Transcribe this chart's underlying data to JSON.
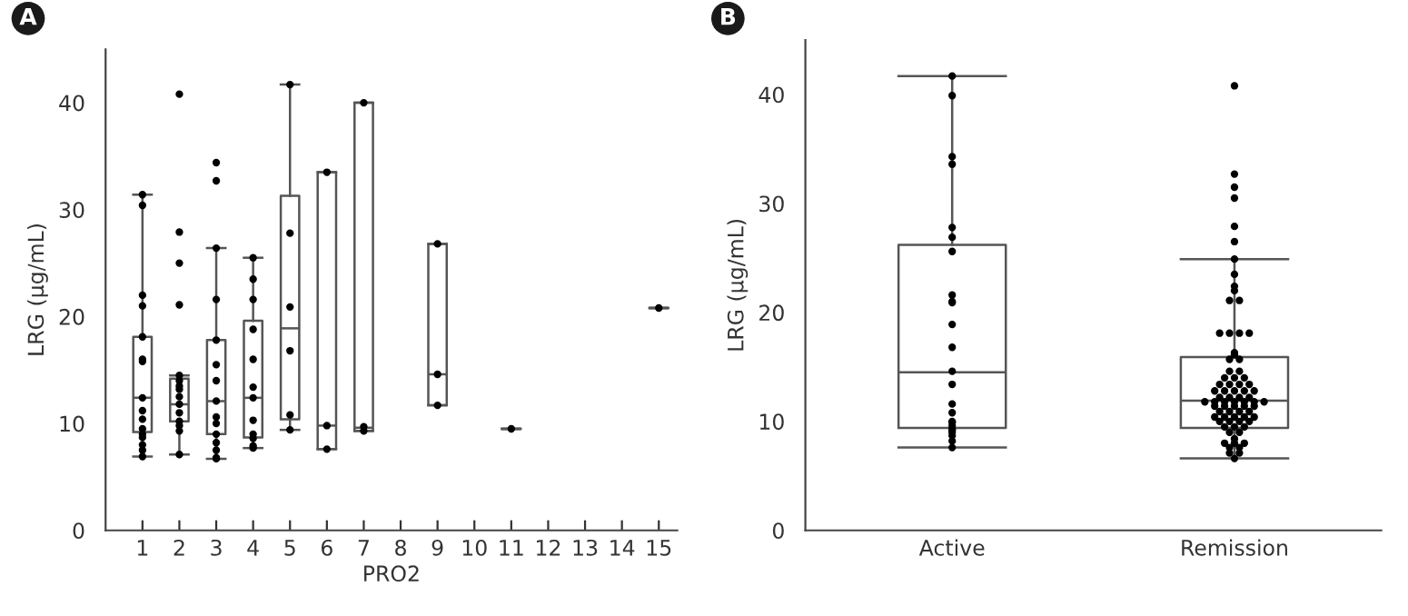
{
  "chart_data": [
    {
      "type": "box",
      "annotations": [
        "A"
      ],
      "xlabel": "PRO2",
      "ylabel": "LRG (μg/mL)",
      "categories": [
        "1",
        "2",
        "3",
        "4",
        "5",
        "6",
        "7",
        "8",
        "9",
        "10",
        "11",
        "12",
        "13",
        "14",
        "15"
      ],
      "boxes": [
        {
          "low": 6.9,
          "q1": 9.2,
          "median": 12.4,
          "q3": 18.1,
          "high": 31.4
        },
        {
          "low": 7.1,
          "q1": 10.2,
          "median": 11.8,
          "q3": 14.2,
          "high": 14.5
        },
        {
          "low": 6.7,
          "q1": 9.0,
          "median": 12.1,
          "q3": 17.8,
          "high": 26.4
        },
        {
          "low": 7.7,
          "q1": 8.7,
          "median": 12.4,
          "q3": 19.6,
          "high": 25.5
        },
        {
          "low": 9.4,
          "q1": 10.4,
          "median": 18.9,
          "q3": 31.3,
          "high": 41.7
        },
        {
          "low": 7.6,
          "q1": 7.6,
          "median": 9.8,
          "q3": 33.5,
          "high": 33.5
        },
        {
          "low": 9.3,
          "q1": 9.3,
          "median": 9.6,
          "q3": 40.0,
          "high": 40.0
        },
        null,
        {
          "low": 11.7,
          "q1": 11.7,
          "median": 14.6,
          "q3": 26.8,
          "high": 26.8
        },
        null,
        {
          "low": 9.5,
          "q1": 9.5,
          "median": 9.5,
          "q3": 9.5,
          "high": 9.5
        },
        null,
        null,
        null,
        {
          "low": 20.8,
          "q1": 20.8,
          "median": 20.8,
          "q3": 20.8,
          "high": 20.8
        }
      ],
      "series": [
        {
          "type": "scatter",
          "color": "#000000",
          "x": [
            "1",
            "1",
            "1",
            "1",
            "1",
            "1",
            "1",
            "1",
            "1",
            "1",
            "1",
            "1",
            "1",
            "1",
            "1",
            "1",
            "2",
            "2",
            "2",
            "2",
            "2",
            "2",
            "2",
            "2",
            "2",
            "2",
            "2",
            "2",
            "2",
            "2",
            "2",
            "3",
            "3",
            "3",
            "3",
            "3",
            "3",
            "3",
            "3",
            "3",
            "3",
            "3",
            "3",
            "3",
            "3",
            "3",
            "4",
            "4",
            "4",
            "4",
            "4",
            "4",
            "4",
            "4",
            "4",
            "4",
            "4",
            "4",
            "5",
            "5",
            "5",
            "5",
            "5",
            "5",
            "6",
            "6",
            "6",
            "7",
            "7",
            "7",
            "9",
            "9",
            "9",
            "11",
            "15"
          ],
          "values": [
            31.4,
            30.4,
            22,
            21,
            18.1,
            16,
            15.8,
            12.4,
            11.2,
            10.4,
            9.5,
            9,
            8.7,
            8,
            7.5,
            6.9,
            40.8,
            27.9,
            25,
            21.1,
            14.5,
            14,
            13.5,
            13.2,
            12.5,
            11.8,
            11,
            10.2,
            9.8,
            9.3,
            7.1,
            34.4,
            32.7,
            26.4,
            21.6,
            17.8,
            15.5,
            14,
            12.1,
            10.6,
            10,
            9,
            8.2,
            7.5,
            6.8,
            6.7,
            25.5,
            23.5,
            21.6,
            18.8,
            16,
            13.4,
            12.4,
            10.3,
            9.0,
            8.6,
            7.9,
            7.7,
            41.7,
            27.8,
            20.9,
            16.8,
            10.8,
            9.4,
            33.5,
            9.8,
            7.6,
            40.0,
            9.7,
            9.3,
            26.8,
            14.6,
            11.7,
            9.5,
            20.8
          ]
        }
      ],
      "ylim": [
        0,
        45
      ],
      "yticks": [
        0,
        10,
        20,
        30,
        40
      ],
      "grid": false,
      "legend": false
    },
    {
      "type": "box",
      "annotations": [
        "B"
      ],
      "ylabel": "LRG (μg/mL)",
      "categories": [
        "Active",
        "Remission"
      ],
      "boxes": [
        {
          "low": 7.6,
          "q1": 9.4,
          "median": 14.5,
          "q3": 26.2,
          "high": 41.7
        },
        {
          "low": 6.6,
          "q1": 9.4,
          "median": 11.9,
          "q3": 15.9,
          "high": 24.9
        }
      ],
      "series": [
        {
          "type": "scatter",
          "color": "#000000",
          "x": [
            "Active",
            "Active",
            "Active",
            "Active",
            "Active",
            "Active",
            "Active",
            "Active",
            "Active",
            "Active",
            "Active",
            "Active",
            "Active",
            "Active",
            "Active",
            "Active",
            "Active",
            "Active",
            "Active",
            "Active",
            "Active",
            "Active",
            "Active",
            "Active",
            "Active",
            "Remission",
            "Remission",
            "Remission",
            "Remission",
            "Remission",
            "Remission",
            "Remission",
            "Remission",
            "Remission",
            "Remission",
            "Remission",
            "Remission",
            "Remission",
            "Remission",
            "Remission",
            "Remission",
            "Remission",
            "Remission",
            "Remission",
            "Remission",
            "Remission",
            "Remission",
            "Remission",
            "Remission",
            "Remission",
            "Remission",
            "Remission",
            "Remission",
            "Remission",
            "Remission",
            "Remission",
            "Remission",
            "Remission",
            "Remission",
            "Remission",
            "Remission",
            "Remission",
            "Remission",
            "Remission",
            "Remission",
            "Remission",
            "Remission",
            "Remission",
            "Remission",
            "Remission",
            "Remission",
            "Remission",
            "Remission",
            "Remission",
            "Remission",
            "Remission",
            "Remission",
            "Remission",
            "Remission",
            "Remission",
            "Remission",
            "Remission",
            "Remission",
            "Remission",
            "Remission",
            "Remission",
            "Remission",
            "Remission",
            "Remission",
            "Remission",
            "Remission",
            "Remission",
            "Remission",
            "Remission",
            "Remission",
            "Remission",
            "Remission",
            "Remission",
            "Remission",
            "Remission",
            "Remission",
            "Remission"
          ],
          "values": [
            41.7,
            39.9,
            34.3,
            33.6,
            27.8,
            26.9,
            25.6,
            21.6,
            21,
            20.9,
            18.9,
            16.8,
            14.6,
            13.4,
            11.6,
            10.8,
            10,
            9.9,
            9.6,
            9.3,
            9.2,
            9,
            8.7,
            8.2,
            7.6,
            40.8,
            32.7,
            31.5,
            30.5,
            27.9,
            26.5,
            24.9,
            23.5,
            22.4,
            22,
            21.1,
            21.1,
            18.1,
            18.1,
            18.1,
            18.1,
            16.3,
            16.1,
            15.7,
            15.7,
            14.6,
            14.6,
            14,
            14,
            14,
            13.4,
            13.4,
            13.4,
            13.4,
            12.8,
            12.8,
            12.8,
            12.8,
            12.8,
            12.2,
            12.2,
            12.2,
            12.2,
            11.8,
            11.8,
            11.8,
            11.8,
            11.8,
            11.8,
            11.8,
            11.4,
            11.4,
            11.4,
            11.4,
            11.4,
            10.9,
            10.9,
            10.9,
            10.9,
            10.4,
            10.4,
            10.4,
            10.4,
            10.4,
            10,
            10,
            10,
            10,
            9.5,
            9.5,
            9.5,
            9,
            9,
            8.4,
            8,
            8,
            8,
            7.6,
            7.6,
            7.1,
            7.1,
            6.6
          ]
        }
      ],
      "ylim": [
        0,
        45
      ],
      "yticks": [
        0,
        10,
        20,
        30,
        40
      ],
      "grid": false,
      "legend": false
    }
  ]
}
